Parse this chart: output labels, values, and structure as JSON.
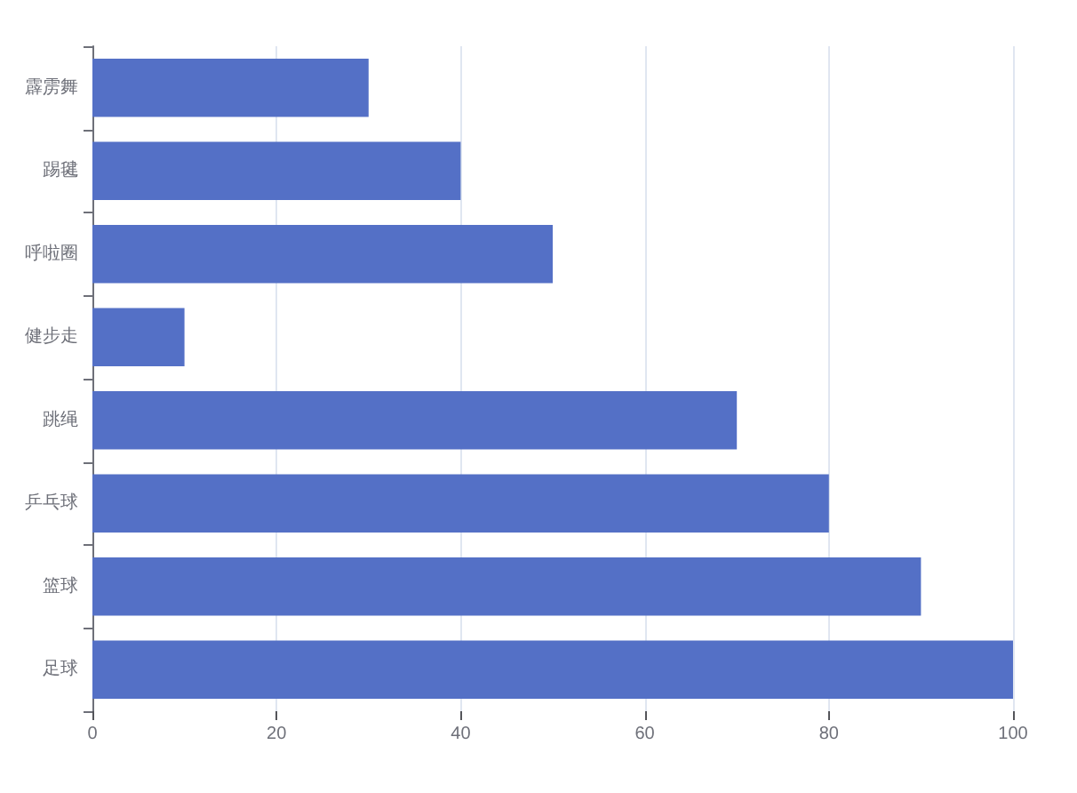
{
  "chart_data": {
    "type": "bar",
    "orientation": "horizontal",
    "categories": [
      "霹雳舞",
      "踢毽",
      "呼啦圈",
      "健步走",
      "跳绳",
      "乒乓球",
      "篮球",
      "足球"
    ],
    "values": [
      30,
      40,
      50,
      10,
      70,
      80,
      90,
      100
    ],
    "color": "#5470c6",
    "xlim": [
      0,
      100
    ],
    "xticks": [
      0,
      20,
      40,
      60,
      80,
      100
    ],
    "grid": "x"
  }
}
